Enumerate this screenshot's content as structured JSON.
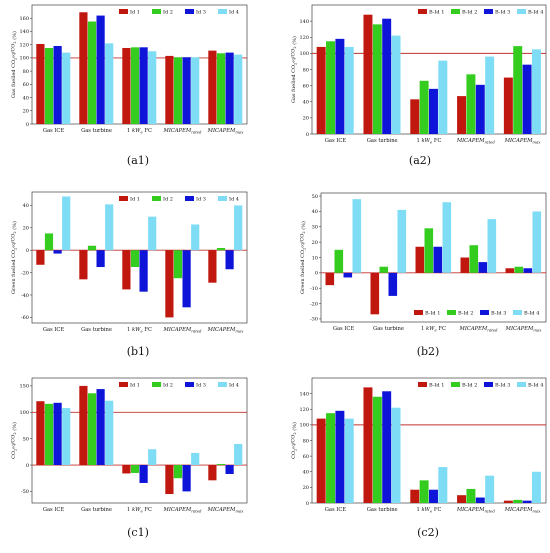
{
  "figure": {
    "colors": [
      "#c0180f",
      "#33cc1f",
      "#0f14d9",
      "#7fdcf5"
    ],
    "reference_line_color": "#c0302c"
  },
  "chart_data": [
    {
      "panel_label": "(a1)",
      "type": "bar",
      "ylabel": "Gas fuelled CO2^eq/CO2 (%)",
      "categories": [
        "Gas ICE",
        "Gas turbine",
        "1 kW_e FC",
        "MICAPEM_rated",
        "MICAPEM_max"
      ],
      "ylim": [
        0,
        180
      ],
      "yticks": [
        0,
        20,
        40,
        60,
        80,
        100,
        120,
        140,
        160
      ],
      "reference_line": 100,
      "legend": "top-right",
      "series": [
        {
          "name": "Id 1",
          "values": [
            121,
            169,
            115,
            103,
            111
          ]
        },
        {
          "name": "Id 2",
          "values": [
            115,
            155,
            116,
            101,
            107
          ]
        },
        {
          "name": "Id 3",
          "values": [
            118,
            164,
            116,
            101,
            108
          ]
        },
        {
          "name": "Id 4",
          "values": [
            108,
            122,
            110,
            101,
            105
          ]
        }
      ]
    },
    {
      "panel_label": "(a2)",
      "type": "bar",
      "ylabel": "Gas fuelled CO2^eq/CO2 (%)",
      "categories": [
        "Gas ICE",
        "Gas turbine",
        "1 kW_e FC",
        "MICAPEM_rated",
        "MICAPEM_max"
      ],
      "ylim": [
        0,
        160
      ],
      "yticks": [
        0,
        20,
        40,
        60,
        80,
        100,
        120,
        140
      ],
      "reference_line": 100,
      "legend": "top-right",
      "series": [
        {
          "name": "B-Id 1",
          "values": [
            108,
            148,
            43,
            47,
            70
          ]
        },
        {
          "name": "B-Id 2",
          "values": [
            115,
            136,
            66,
            74,
            109
          ]
        },
        {
          "name": "B-Id 3",
          "values": [
            118,
            143,
            56,
            61,
            86
          ]
        },
        {
          "name": "B-Id 4",
          "values": [
            108,
            122,
            91,
            96,
            105
          ]
        }
      ]
    },
    {
      "panel_label": "(b1)",
      "type": "bar",
      "ylabel": "Green fuelled CO2^eq/CO2 (%)",
      "categories": [
        "Gas ICE",
        "Gas turbine",
        "1 kW_e FC",
        "MICAPEM_rated",
        "MICAPEM_max"
      ],
      "ylim": [
        -65,
        52
      ],
      "yticks": [
        -60,
        -40,
        -20,
        0,
        20,
        40
      ],
      "reference_line": 0,
      "legend": "top-right",
      "series": [
        {
          "name": "Id 1",
          "values": [
            -13,
            -26,
            -35,
            -60,
            -29
          ]
        },
        {
          "name": "Id 2",
          "values": [
            15,
            4,
            -15,
            -25,
            2
          ]
        },
        {
          "name": "Id 3",
          "values": [
            -3,
            -15,
            -37,
            -51,
            -17
          ]
        },
        {
          "name": "Id 4",
          "values": [
            48,
            41,
            30,
            23,
            40
          ]
        }
      ]
    },
    {
      "panel_label": "(b2)",
      "type": "bar",
      "ylabel": "Green fuelled CO2^eq/CO2 (%)",
      "categories": [
        "Gas ICE",
        "Gas turbine",
        "1 kW_e FC",
        "MICAPEM_rated",
        "MICAPEM_max"
      ],
      "ylim": [
        -32,
        52
      ],
      "yticks": [
        -30,
        -20,
        -10,
        0,
        10,
        20,
        30,
        40,
        50
      ],
      "reference_line": 0,
      "legend": "bottom-right",
      "series": [
        {
          "name": "B-Id 1",
          "values": [
            -8,
            -27,
            17,
            10,
            3
          ]
        },
        {
          "name": "B-Id 2",
          "values": [
            15,
            4,
            29,
            18,
            4
          ]
        },
        {
          "name": "B-Id 3",
          "values": [
            -3,
            -15,
            17,
            7,
            3
          ]
        },
        {
          "name": "B-Id 4",
          "values": [
            48,
            41,
            46,
            35,
            40
          ]
        }
      ]
    },
    {
      "panel_label": "(c1)",
      "type": "bar",
      "ylabel": "CO2^eq/CO2 (%)",
      "categories": [
        "Gas ICE",
        "Gas turbine",
        "1 kW_e FC",
        "MICAPEM_rated",
        "MICAPEM_max"
      ],
      "ylim": [
        -72,
        165
      ],
      "yticks": [
        -50,
        0,
        50,
        100,
        150
      ],
      "reference_lines": [
        0,
        100
      ],
      "legend": "top-right",
      "series": [
        {
          "name": "Id 1",
          "values": [
            121,
            150,
            -16,
            -55,
            -29
          ]
        },
        {
          "name": "Id 2",
          "values": [
            116,
            136,
            -15,
            -25,
            2
          ]
        },
        {
          "name": "Id 3",
          "values": [
            118,
            144,
            -34,
            -50,
            -17
          ]
        },
        {
          "name": "Id 4",
          "values": [
            108,
            122,
            30,
            23,
            40
          ]
        }
      ]
    },
    {
      "panel_label": "(c2)",
      "type": "bar",
      "ylabel": "CO2^eq/CO2 (%)",
      "categories": [
        "Gas ICE",
        "Gas turbine",
        "1 kW_e FC",
        "MICAPEM_rated",
        "MICAPEM_max"
      ],
      "ylim": [
        0,
        160
      ],
      "yticks": [
        0,
        20,
        40,
        60,
        80,
        100,
        120,
        140
      ],
      "reference_line": 100,
      "legend": "top-right",
      "series": [
        {
          "name": "B-Id 1",
          "values": [
            108,
            148,
            17,
            10,
            3
          ]
        },
        {
          "name": "B-Id 2",
          "values": [
            115,
            136,
            29,
            18,
            4
          ]
        },
        {
          "name": "B-Id 3",
          "values": [
            118,
            143,
            17,
            7,
            3
          ]
        },
        {
          "name": "B-Id 4",
          "values": [
            108,
            122,
            46,
            35,
            40
          ]
        }
      ]
    }
  ]
}
